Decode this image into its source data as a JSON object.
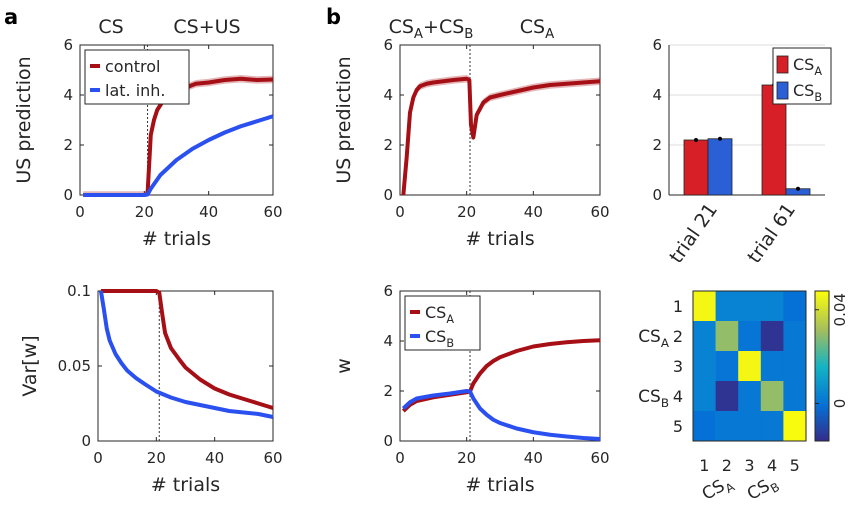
{
  "panel_labels": [
    "a",
    "b"
  ],
  "colors": {
    "control": "#a50f15",
    "lat_inh": "#2b50f0",
    "csa_bar": "#d61f26",
    "csb_bar": "#2a5fd6"
  },
  "chart_data": [
    {
      "id": "a-top",
      "type": "line",
      "header_left": "CS",
      "header_right": "CS+US",
      "xlabel": "# trials",
      "ylabel": "US prediction",
      "xlim": [
        0,
        60
      ],
      "ylim": [
        0,
        6
      ],
      "xticks": [
        0,
        20,
        40,
        60
      ],
      "yticks": [
        0,
        2,
        4,
        6
      ],
      "vline": 21,
      "legend_position": "top-left",
      "series": [
        {
          "name": "control",
          "color": "#a50f15",
          "band": 0.15,
          "x": [
            1,
            20,
            21,
            22,
            23,
            24,
            26,
            28,
            30,
            33,
            36,
            40,
            45,
            50,
            55,
            60
          ],
          "y": [
            0,
            0,
            0.05,
            2.4,
            3.0,
            3.4,
            3.8,
            4.0,
            4.15,
            4.3,
            4.45,
            4.5,
            4.6,
            4.65,
            4.6,
            4.62
          ]
        },
        {
          "name": "lat. inh.",
          "color": "#2b50f0",
          "band": 0.08,
          "x": [
            1,
            20,
            21,
            22,
            25,
            30,
            35,
            40,
            45,
            50,
            55,
            60
          ],
          "y": [
            0,
            0,
            0.02,
            0.25,
            0.8,
            1.4,
            1.85,
            2.2,
            2.5,
            2.75,
            2.95,
            3.15
          ]
        }
      ]
    },
    {
      "id": "a-bottom",
      "type": "line",
      "xlabel": "# trials",
      "ylabel": "Var[w]",
      "xlim": [
        0,
        60
      ],
      "ylim": [
        0,
        0.1
      ],
      "xticks": [
        0,
        20,
        40,
        60
      ],
      "yticks": [
        0,
        0.05,
        0.1
      ],
      "ytick_labels": [
        "0",
        "0.05",
        "0.1"
      ],
      "vline": 21,
      "series": [
        {
          "color": "#a50f15",
          "x": [
            1,
            20,
            21,
            22,
            23,
            25,
            28,
            30,
            35,
            40,
            45,
            50,
            55,
            60
          ],
          "y": [
            0.1,
            0.1,
            0.099,
            0.085,
            0.072,
            0.062,
            0.054,
            0.049,
            0.041,
            0.035,
            0.031,
            0.028,
            0.025,
            0.022
          ]
        },
        {
          "color": "#2b50f0",
          "x": [
            1,
            2,
            3,
            4,
            6,
            8,
            10,
            13,
            16,
            20,
            25,
            30,
            35,
            40,
            45,
            50,
            55,
            60
          ],
          "y": [
            0.1,
            0.088,
            0.075,
            0.067,
            0.058,
            0.052,
            0.047,
            0.042,
            0.038,
            0.033,
            0.029,
            0.026,
            0.024,
            0.022,
            0.02,
            0.019,
            0.018,
            0.016
          ]
        }
      ]
    },
    {
      "id": "b-top",
      "type": "line",
      "header_left": "CSA+CSB",
      "header_right": "CSA",
      "xlabel": "# trials",
      "ylabel": "US prediction",
      "xlim": [
        0,
        60
      ],
      "ylim": [
        0,
        6
      ],
      "xticks": [
        0,
        20,
        40,
        60
      ],
      "yticks": [
        0,
        2,
        4,
        6
      ],
      "vline": 21,
      "series": [
        {
          "color": "#a50f15",
          "band": 0.15,
          "x": [
            1,
            2,
            3,
            4,
            5,
            6,
            8,
            10,
            13,
            16,
            20,
            20.8,
            21.3,
            22,
            23,
            25,
            27,
            30,
            35,
            40,
            45,
            50,
            55,
            60
          ],
          "y": [
            0,
            1.5,
            3.3,
            3.9,
            4.2,
            4.35,
            4.45,
            4.5,
            4.55,
            4.6,
            4.65,
            4.6,
            2.8,
            2.3,
            3.2,
            3.7,
            3.9,
            4.0,
            4.15,
            4.3,
            4.4,
            4.45,
            4.5,
            4.55
          ]
        }
      ]
    },
    {
      "id": "b-bar",
      "type": "bar",
      "categories": [
        "trial 21",
        "trial 61"
      ],
      "ylim": [
        0,
        6
      ],
      "yticks": [
        0,
        2,
        4,
        6
      ],
      "grid": true,
      "legend_position": "top-right",
      "series": [
        {
          "name": "CSA",
          "color": "#d61f26",
          "values": [
            2.2,
            4.4
          ]
        },
        {
          "name": "CSB",
          "color": "#2a5fd6",
          "values": [
            2.25,
            0.25
          ]
        }
      ]
    },
    {
      "id": "b-bottom",
      "type": "line",
      "xlabel": "# trials",
      "ylabel": "w",
      "xlim": [
        0,
        60
      ],
      "ylim": [
        0,
        6
      ],
      "xticks": [
        0,
        20,
        40,
        60
      ],
      "yticks": [
        0,
        2,
        4,
        6
      ],
      "vline": 21,
      "legend_position": "top-left",
      "series": [
        {
          "name": "CSA",
          "color": "#a50f15",
          "x": [
            1,
            3,
            5,
            10,
            15,
            20,
            21,
            22,
            24,
            26,
            28,
            30,
            35,
            40,
            45,
            50,
            55,
            60
          ],
          "y": [
            1.2,
            1.45,
            1.6,
            1.75,
            1.85,
            1.95,
            1.98,
            2.3,
            2.7,
            3.0,
            3.2,
            3.35,
            3.6,
            3.78,
            3.88,
            3.95,
            4.0,
            4.03
          ]
        },
        {
          "name": "CSB",
          "color": "#2b50f0",
          "x": [
            1,
            3,
            5,
            10,
            15,
            20,
            21,
            22,
            24,
            26,
            28,
            30,
            35,
            40,
            45,
            50,
            55,
            60
          ],
          "y": [
            1.3,
            1.55,
            1.7,
            1.82,
            1.9,
            2.0,
            1.98,
            1.7,
            1.3,
            1.05,
            0.85,
            0.72,
            0.5,
            0.35,
            0.25,
            0.18,
            0.12,
            0.08
          ]
        }
      ]
    },
    {
      "id": "b-heatmap",
      "type": "heatmap",
      "row_labels": [
        "1",
        "2",
        "3",
        "4",
        "5"
      ],
      "col_labels": [
        "1",
        "2",
        "3",
        "4",
        "5"
      ],
      "group_labels": [
        "CSA",
        "CSB"
      ],
      "colorbar_ticks": [
        0.04,
        0
      ],
      "colorbar_tick_labels": [
        "0.04",
        "0"
      ],
      "zlim": [
        -0.016,
        0.048
      ],
      "values": [
        [
          0.047,
          0.004,
          0.004,
          0.004,
          0.0
        ],
        [
          0.004,
          0.03,
          0.001,
          -0.014,
          0.002
        ],
        [
          0.004,
          0.001,
          0.047,
          0.002,
          0.002
        ],
        [
          0.004,
          -0.014,
          0.002,
          0.03,
          0.002
        ],
        [
          0.0,
          0.002,
          0.002,
          0.002,
          0.048
        ]
      ]
    }
  ]
}
